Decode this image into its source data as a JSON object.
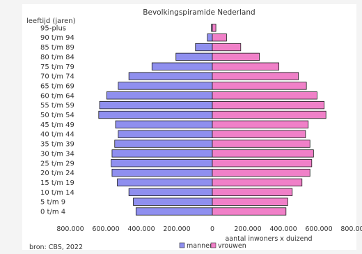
{
  "chart_data": {
    "type": "bar",
    "orientation": "horizontal-pyramid",
    "title": "Bevolkingspiramide Nederland",
    "ylabel": "leeftijd (jaren)",
    "xlabel": "aantal inwoners x duizend",
    "categories": [
      "0 t/m 4",
      "5 t/m 9",
      "10 t/m 14",
      "15 t/m 19",
      "20 t/m 24",
      "25 t/m 29",
      "30 t/m 34",
      "35 t/m 39",
      "40 t/m 44",
      "45 t/m 49",
      "50 t/m 54",
      "55 t/m 59",
      "60 t/m 64",
      "65 t/m 69",
      "70 t/m 74",
      "75 t/m 79",
      "80 t/m 84",
      "85 t/m 89",
      "90 t/m 94",
      "95-plus"
    ],
    "series": [
      {
        "name": "mannen",
        "color": "#8f8fef",
        "values": [
          430000,
          445000,
          470000,
          535000,
          565000,
          570000,
          565000,
          550000,
          530000,
          545000,
          640000,
          635000,
          595000,
          530000,
          470000,
          340000,
          205000,
          95000,
          28000,
          5000
        ]
      },
      {
        "name": "vrouwen",
        "color": "#f080c8",
        "values": [
          415000,
          425000,
          450000,
          505000,
          550000,
          560000,
          570000,
          550000,
          525000,
          540000,
          640000,
          630000,
          590000,
          530000,
          485000,
          375000,
          265000,
          160000,
          80000,
          20000
        ]
      }
    ],
    "xticks": [
      "800.000",
      "600.000",
      "400.000",
      "200.000",
      "0",
      "200.000",
      "400.000",
      "600.000",
      "800.000"
    ],
    "xlim": [
      -800000,
      800000
    ],
    "grid": false,
    "legend": "bottom"
  },
  "footer": {
    "source": "bron: CBS,  2022"
  }
}
